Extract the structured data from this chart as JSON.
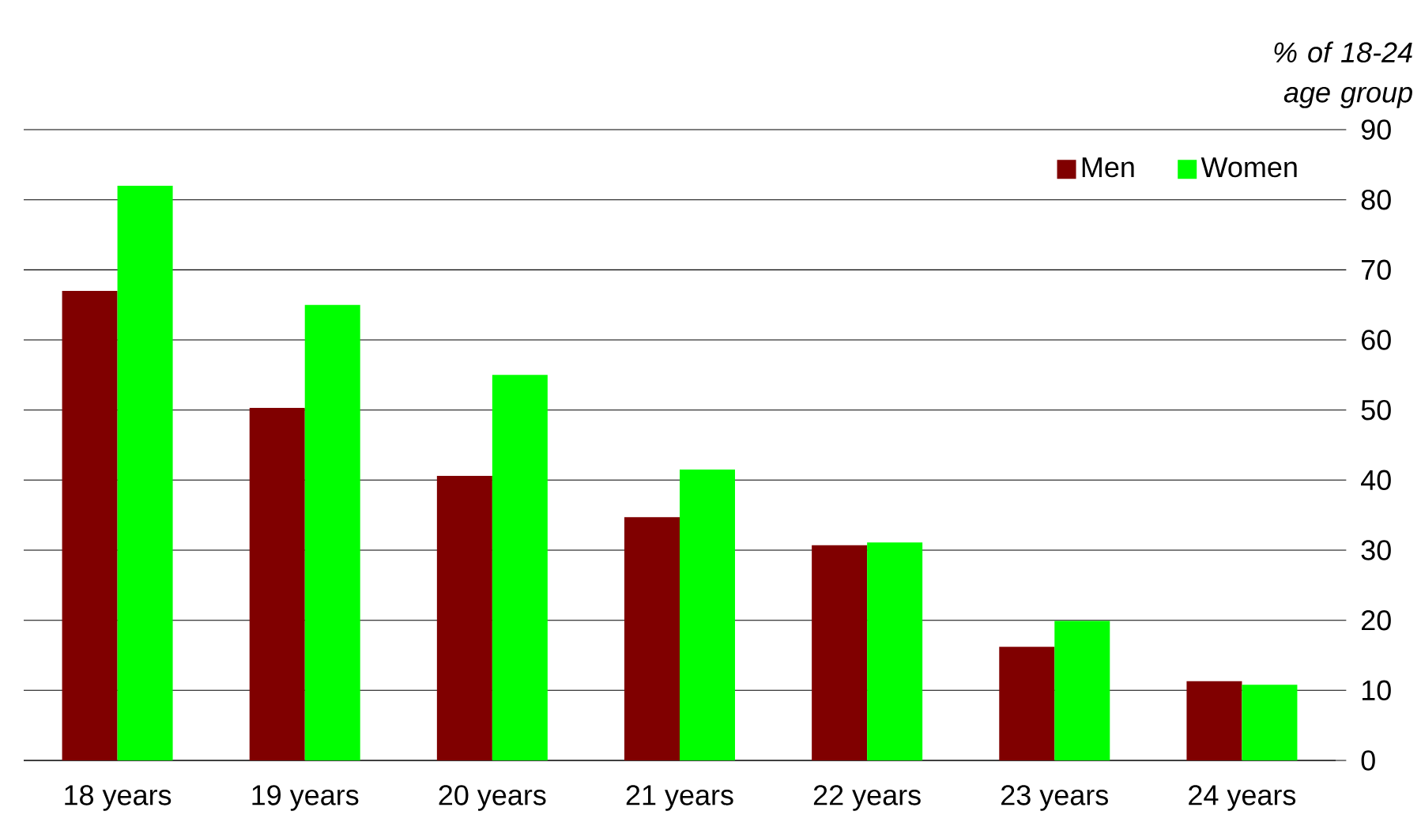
{
  "chart_data": {
    "type": "bar",
    "ylabel": "% of 18-24 age group",
    "categories": [
      "18 years",
      "19 years",
      "20 years",
      "21 years",
      "22 years",
      "23 years",
      "24 years"
    ],
    "series": [
      {
        "name": "Men",
        "color": "#800000",
        "values": [
          67,
          50.3,
          40.6,
          34.7,
          30.7,
          16.2,
          11.3
        ]
      },
      {
        "name": "Women",
        "color": "#00ff00",
        "values": [
          82,
          65,
          55,
          41.5,
          31.1,
          19.9,
          10.8
        ]
      }
    ],
    "ylim": [
      0,
      90
    ],
    "yticks": [
      0,
      10,
      20,
      30,
      40,
      50,
      60,
      70,
      80,
      90
    ],
    "grid": "y",
    "legend": "top right"
  }
}
